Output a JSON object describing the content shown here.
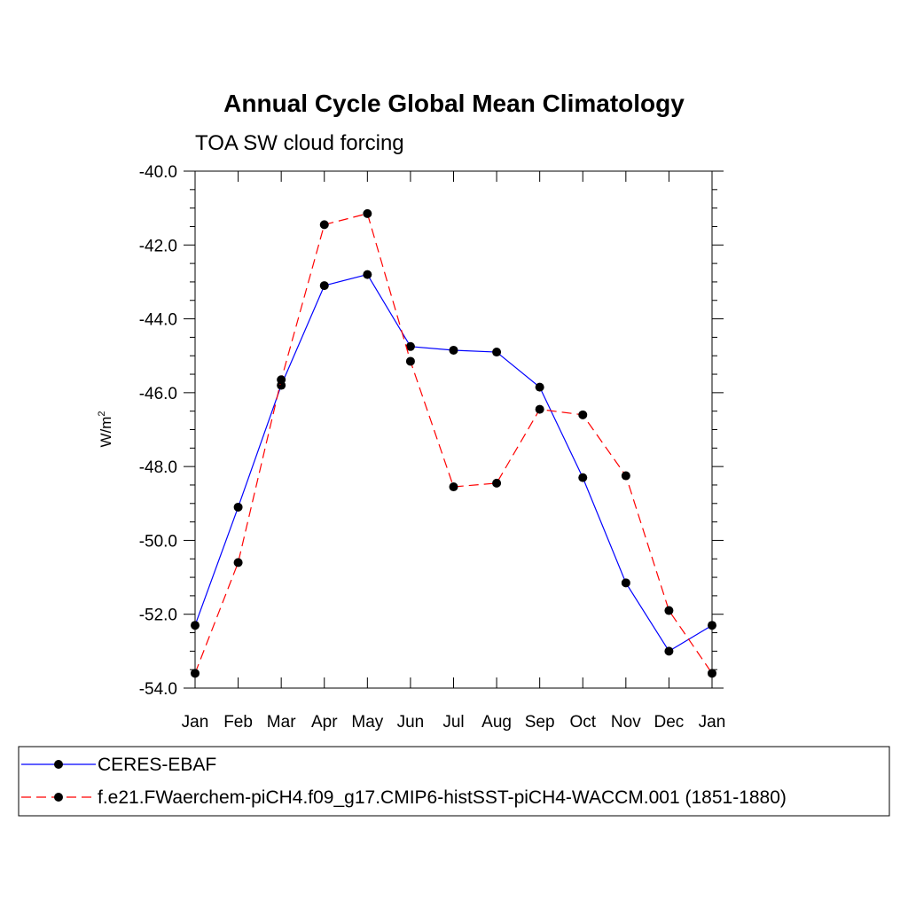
{
  "chart_data": {
    "type": "line",
    "title": "Annual Cycle Global Mean Climatology",
    "subtitle": "TOA SW cloud forcing",
    "ylabel": "W/m",
    "ylabel_sup": "2",
    "ylim": [
      -54.0,
      -40.0
    ],
    "yticks": [
      "-40.0",
      "-42.0",
      "-44.0",
      "-46.0",
      "-48.0",
      "-50.0",
      "-52.0",
      "-54.0"
    ],
    "categories": [
      "Jan",
      "Feb",
      "Mar",
      "Apr",
      "May",
      "Jun",
      "Jul",
      "Aug",
      "Sep",
      "Oct",
      "Nov",
      "Dec",
      "Jan"
    ],
    "grid": false,
    "legend_position": "bottom",
    "series": [
      {
        "name": "CERES-EBAF",
        "color": "#0000ff",
        "style": "solid",
        "values": [
          -52.3,
          -49.1,
          -45.8,
          -43.1,
          -42.8,
          -44.75,
          -44.85,
          -44.9,
          -45.85,
          -48.3,
          -51.15,
          -53.0,
          -52.3
        ]
      },
      {
        "name": "f.e21.FWaerchem-piCH4.f09_g17.CMIP6-histSST-piCH4-WACCM.001 (1851-1880)",
        "color": "#ff0000",
        "style": "dashed",
        "values": [
          -53.6,
          -50.6,
          -45.65,
          -41.45,
          -41.15,
          -45.15,
          -48.55,
          -48.45,
          -46.45,
          -46.6,
          -48.25,
          -51.9,
          -53.6
        ]
      }
    ]
  }
}
